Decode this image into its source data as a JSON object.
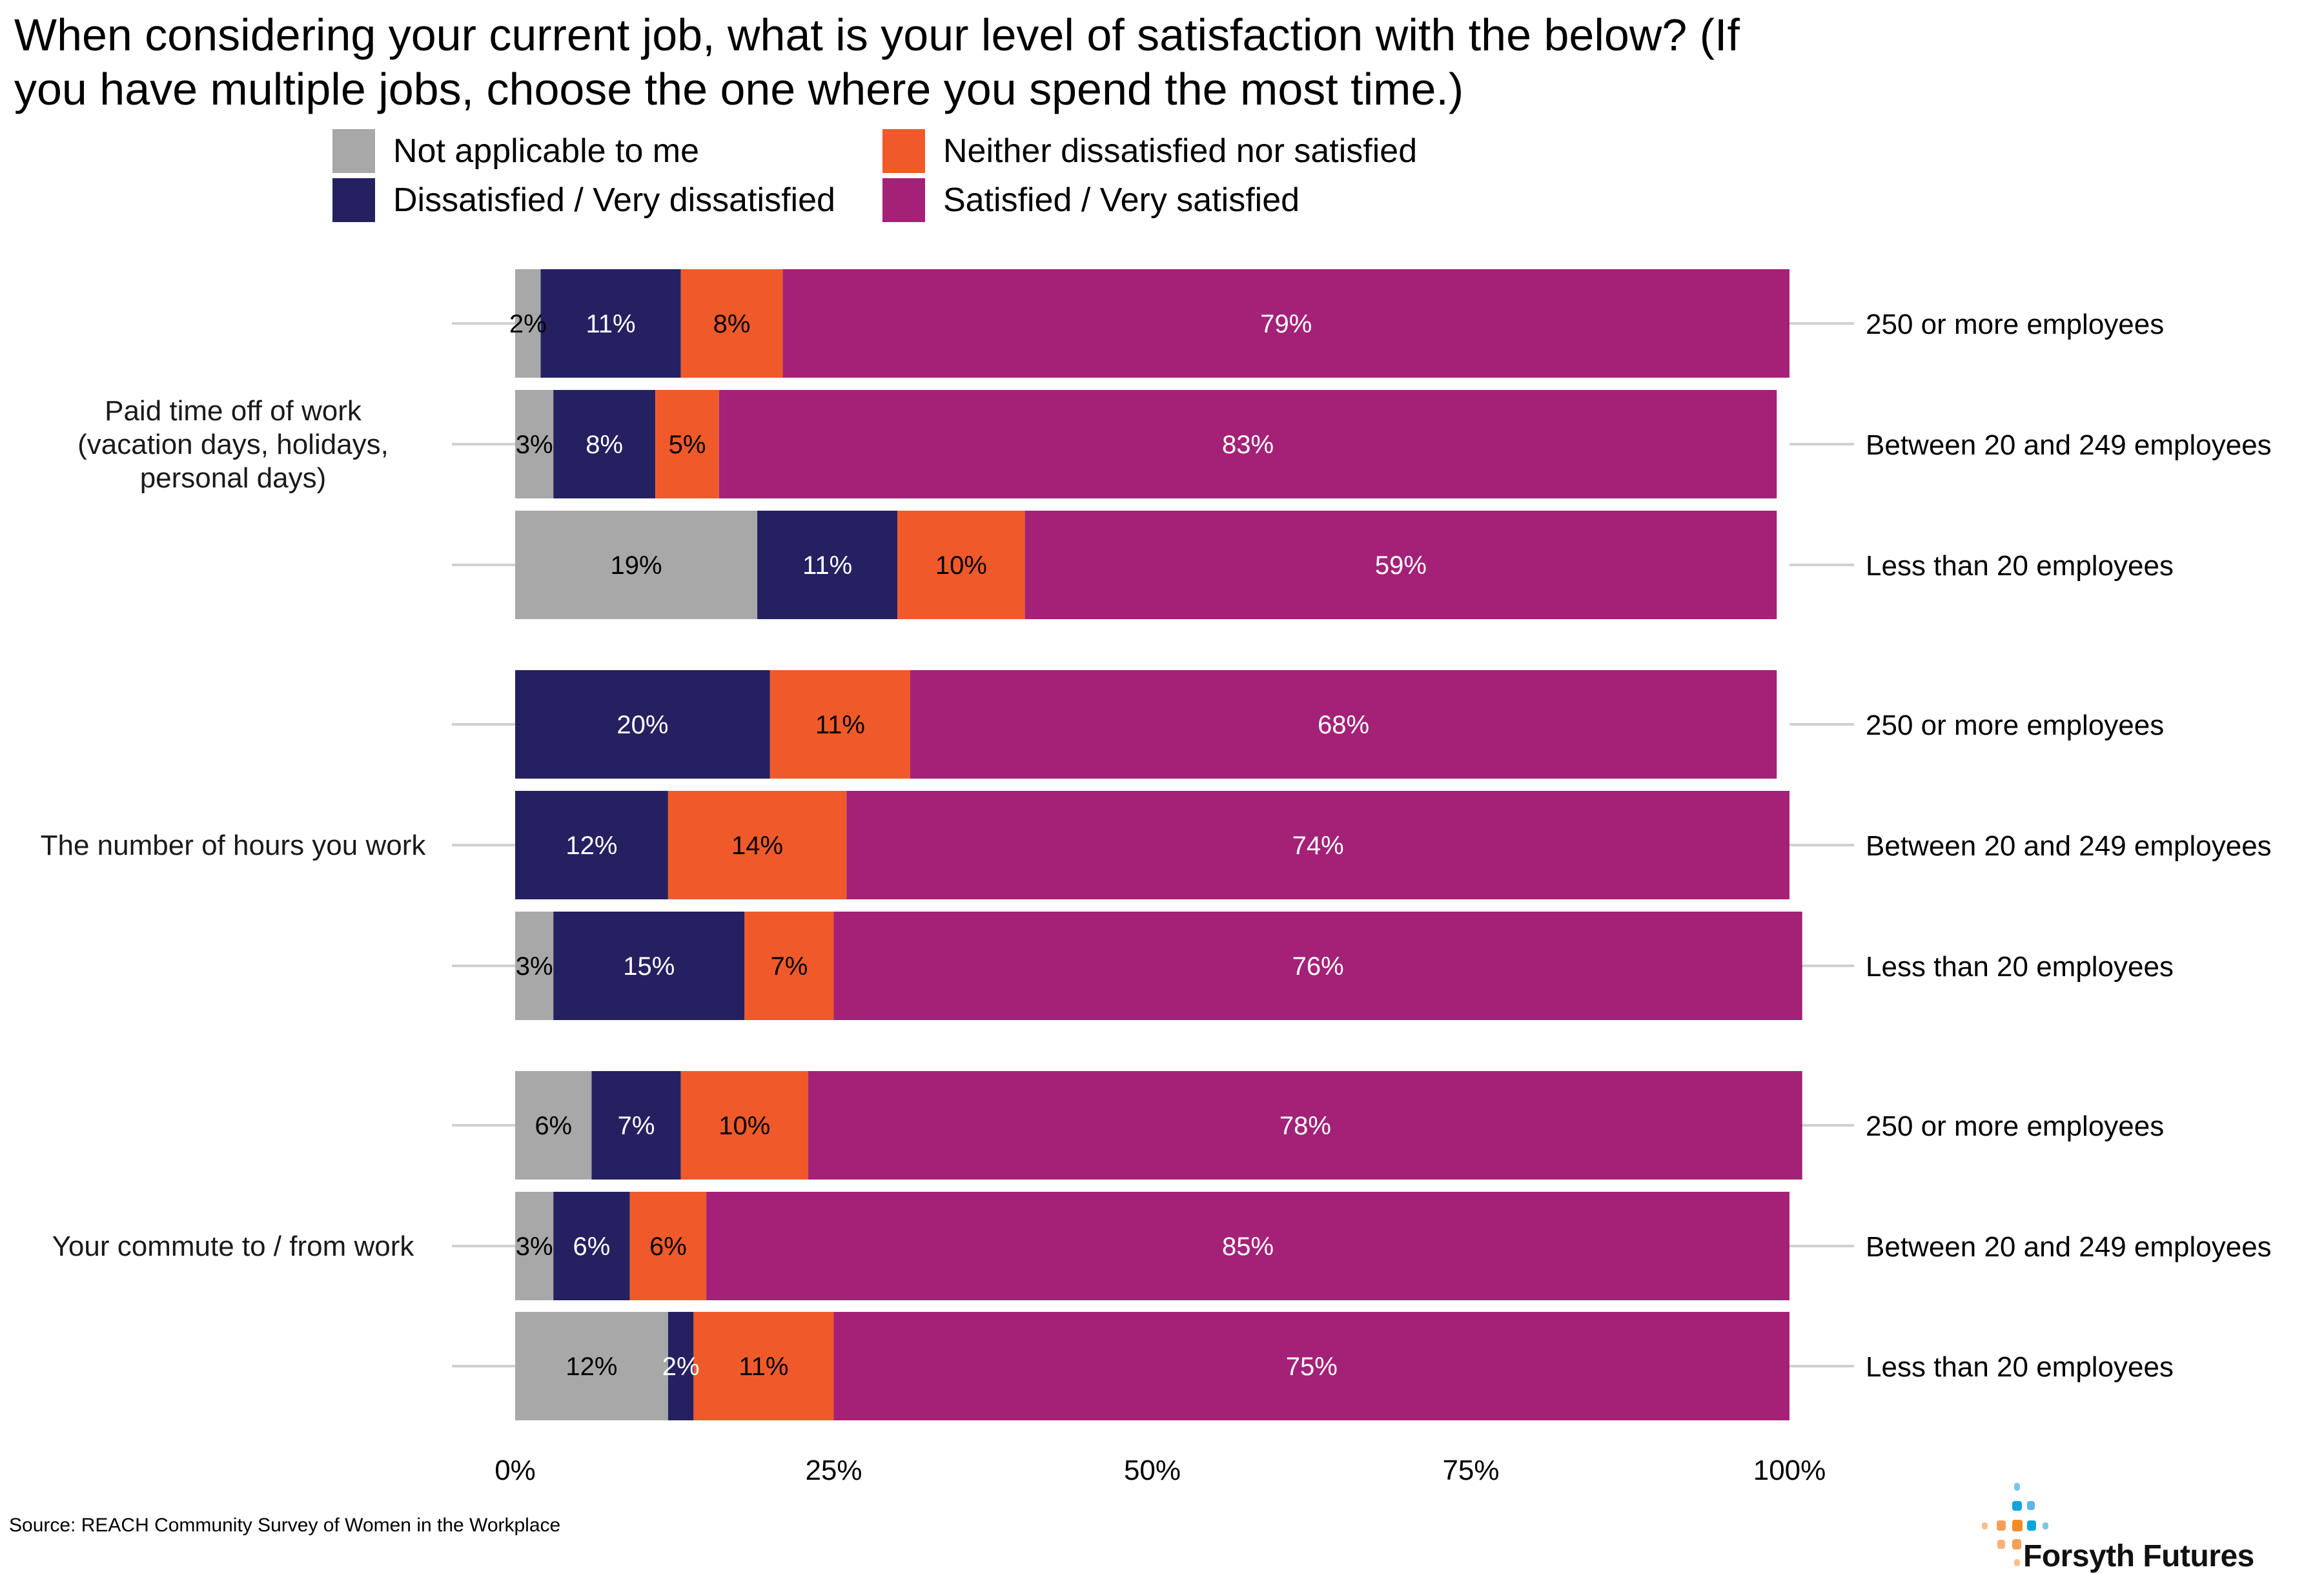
{
  "chart_data": {
    "type": "bar",
    "orientation": "horizontal",
    "stacked": true,
    "title": "When considering your current job, what is your level of satisfaction with the below? (If you have multiple jobs, choose the one where you spend the most time.)",
    "title_lines": [
      "When considering your current job, what is your level of satisfaction with the below? (If",
      "you have multiple jobs, choose the one where you spend the most time.)"
    ],
    "xlabel": "",
    "ylabel": "",
    "xlim": [
      0,
      100
    ],
    "x_ticks": [
      "0%",
      "25%",
      "50%",
      "75%",
      "100%"
    ],
    "x_tick_values": [
      0,
      25,
      50,
      75,
      100
    ],
    "grid": false,
    "legend_position": "top",
    "legend": [
      {
        "name": "Not applicable to me",
        "color": "#a8a8a8"
      },
      {
        "name": "Neither dissatisfied nor satisfied",
        "color": "#f05a2a"
      },
      {
        "name": "Dissatisfied / Very dissatisfied",
        "color": "#252060"
      },
      {
        "name": "Satisfied / Very satisfied",
        "color": "#a42178"
      }
    ],
    "series_order": [
      "Not applicable to me",
      "Dissatisfied / Very dissatisfied",
      "Neither dissatisfied nor satisfied",
      "Satisfied / Very satisfied"
    ],
    "series_colors": [
      "#a8a8a8",
      "#252060",
      "#f05a2a",
      "#a42178"
    ],
    "series_label_colors": [
      "#000000",
      "#ffffff",
      "#000000",
      "#ffffff"
    ],
    "groups": [
      {
        "label_lines": [
          "Paid time off of work",
          "(vacation days, holidays,",
          "personal days)"
        ],
        "rows": [
          {
            "category": "250 or more employees",
            "values": [
              2,
              11,
              8,
              79
            ]
          },
          {
            "category": "Between 20 and 249 employees",
            "values": [
              3,
              8,
              5,
              83
            ]
          },
          {
            "category": "Less than 20 employees",
            "values": [
              19,
              11,
              10,
              59
            ]
          }
        ]
      },
      {
        "label_lines": [
          "The number of hours you work"
        ],
        "rows": [
          {
            "category": "250 or more employees",
            "values": [
              0,
              20,
              11,
              68
            ]
          },
          {
            "category": "Between 20 and 249 employees",
            "values": [
              0,
              12,
              14,
              74
            ]
          },
          {
            "category": "Less than 20 employees",
            "values": [
              3,
              15,
              7,
              76
            ]
          }
        ]
      },
      {
        "label_lines": [
          "Your commute to / from work"
        ],
        "rows": [
          {
            "category": "250 or more employees",
            "values": [
              6,
              7,
              10,
              78
            ]
          },
          {
            "category": "Between 20 and 249 employees",
            "values": [
              3,
              6,
              6,
              85
            ]
          },
          {
            "category": "Less than 20 employees",
            "values": [
              12,
              2,
              11,
              75
            ]
          }
        ]
      }
    ]
  },
  "legend": {
    "items": [
      {
        "label": "Not applicable to me",
        "color": "#a8a8a8"
      },
      {
        "label": "Neither dissatisfied nor satisfied",
        "color": "#f05a2a"
      },
      {
        "label": "Dissatisfied / Very dissatisfied",
        "color": "#252060"
      },
      {
        "label": "Satisfied / Very satisfied",
        "color": "#a42178"
      }
    ]
  },
  "footer": {
    "source": "Source: REACH Community Survey of Women in the Workplace",
    "logo_text": "Forsyth Futures"
  }
}
